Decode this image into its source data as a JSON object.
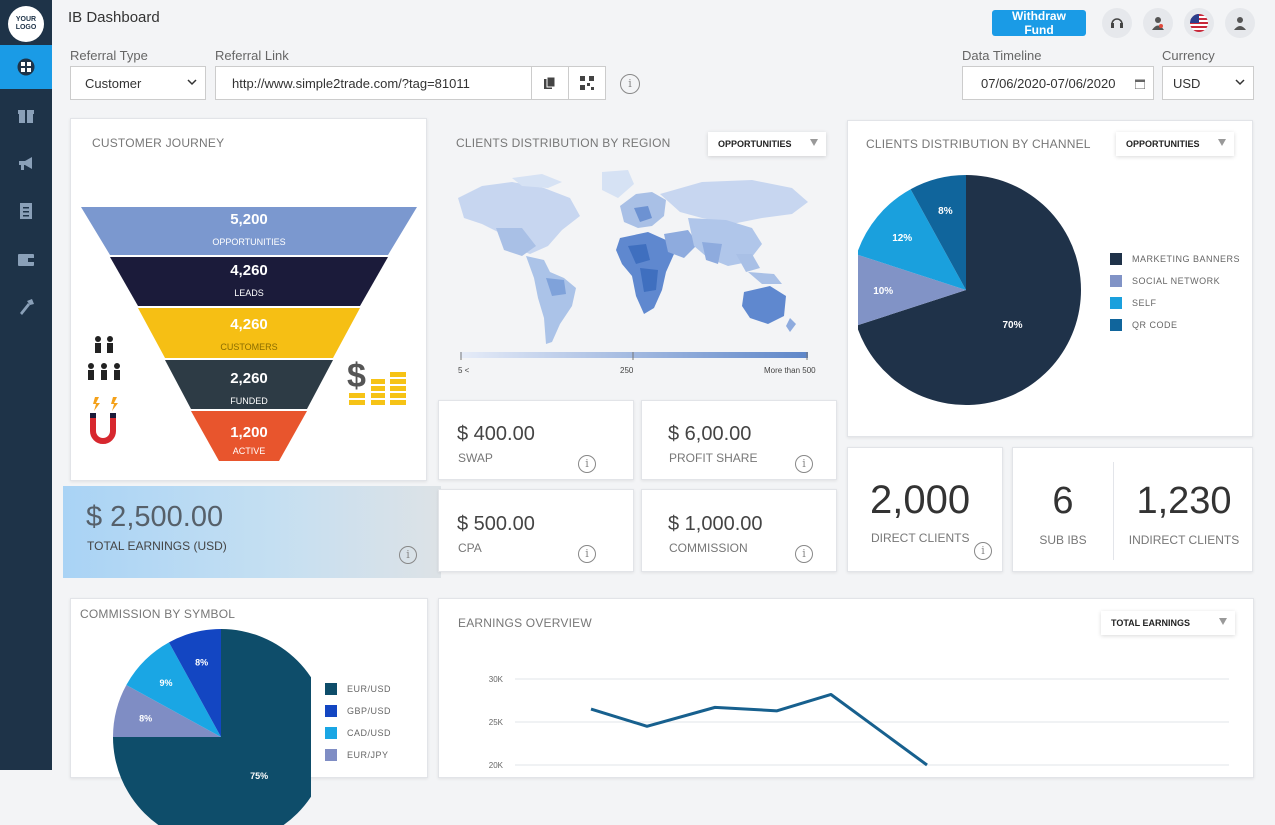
{
  "sidebar": {
    "logo": "YOUR LOGO",
    "items": [
      {
        "icon": "dashboard-icon",
        "active": true
      },
      {
        "icon": "gift-icon"
      },
      {
        "icon": "megaphone-icon"
      },
      {
        "icon": "document-icon"
      },
      {
        "icon": "wallet-icon"
      },
      {
        "icon": "tools-icon"
      }
    ]
  },
  "header": {
    "title": "IB Dashboard",
    "withdraw_label": "Withdraw Fund",
    "icons": [
      "headset-icon",
      "user-alert-icon",
      "us-flag-icon",
      "profile-icon"
    ]
  },
  "filters": {
    "referral_type": {
      "label": "Referral Type",
      "value": "Customer"
    },
    "referral_link": {
      "label": "Referral Link",
      "value": "http://www.simple2trade.com/?tag=81011"
    },
    "timeline": {
      "label": "Data Timeline",
      "value": "07/06/2020-07/06/2020"
    },
    "currency": {
      "label": "Currency",
      "value": "USD"
    }
  },
  "journey": {
    "title": "CUSTOMER JOURNEY",
    "stages": [
      {
        "value": "5,200",
        "label": "OPPORTUNITIES",
        "color": "#7b98cf"
      },
      {
        "value": "4,260",
        "label": "LEADS",
        "color": "#1b1b3a"
      },
      {
        "value": "4,260",
        "label": "CUSTOMERS",
        "color": "#f6bf14"
      },
      {
        "value": "2,260",
        "label": "FUNDED",
        "color": "#2d3b45"
      },
      {
        "value": "1,200",
        "label": "ACTIVE",
        "color": "#e8552d"
      }
    ]
  },
  "region": {
    "title": "CLIENTS DISTRIBUTION BY REGION",
    "dropdown": "OPPORTUNITIES",
    "scale": {
      "min": "5 <",
      "mid": "250",
      "max": "More than 500"
    }
  },
  "channel": {
    "title": "CLIENTS DISTRIBUTION BY CHANNEL",
    "dropdown": "OPPORTUNITIES",
    "slices": [
      {
        "name": "MARKETING BANNERS",
        "pct": 70,
        "label": "70%",
        "color": "#1f3249"
      },
      {
        "name": "SOCIAL NETWORK",
        "pct": 10,
        "label": "10%",
        "color": "#8193c6"
      },
      {
        "name": "SELF",
        "pct": 12,
        "label": "12%",
        "color": "#1aa0dd"
      },
      {
        "name": "QR CODE",
        "pct": 8,
        "label": "8%",
        "color": "#10659c"
      }
    ]
  },
  "earnings": {
    "value": "$ 2,500.00",
    "label": "TOTAL EARNINGS (USD)"
  },
  "stats": [
    {
      "value": "$ 400.00",
      "label": "SWAP"
    },
    {
      "value": "$ 6,00.00",
      "label": "PROFIT SHARE"
    },
    {
      "value": "$ 500.00",
      "label": "CPA"
    },
    {
      "value": "$ 1,000.00",
      "label": "COMMISSION"
    }
  ],
  "clients": {
    "direct": {
      "value": "2,000",
      "label": "DIRECT CLIENTS"
    },
    "sub_ibs": {
      "value": "6",
      "label": "SUB IBS"
    },
    "indirect": {
      "value": "1,230",
      "label": "INDIRECT CLIENTS"
    }
  },
  "symbol": {
    "title": "COMMISSION BY SYMBOL",
    "slices": [
      {
        "name": "EUR/USD",
        "pct": 75,
        "label": "75%",
        "color": "#0e4d6a"
      },
      {
        "name": "GBP/USD",
        "pct": 8,
        "label": "8%",
        "color": "#1346c2"
      },
      {
        "name": "CAD/USD",
        "pct": 9,
        "label": "9%",
        "color": "#1aa6e4"
      },
      {
        "name": "EUR/JPY",
        "pct": 8,
        "label": "8%",
        "color": "#7f8dc4"
      }
    ]
  },
  "overview": {
    "title": "EARNINGS OVERVIEW",
    "dropdown": "TOTAL EARNINGS"
  },
  "chart_data": {
    "type": "line",
    "title": "EARNINGS OVERVIEW",
    "y_ticks": [
      "30K",
      "25K",
      "20K"
    ],
    "ylim": [
      20000,
      30000
    ],
    "values": [
      26500,
      24500,
      26700,
      26300,
      28200,
      20000
    ],
    "grid": true
  }
}
